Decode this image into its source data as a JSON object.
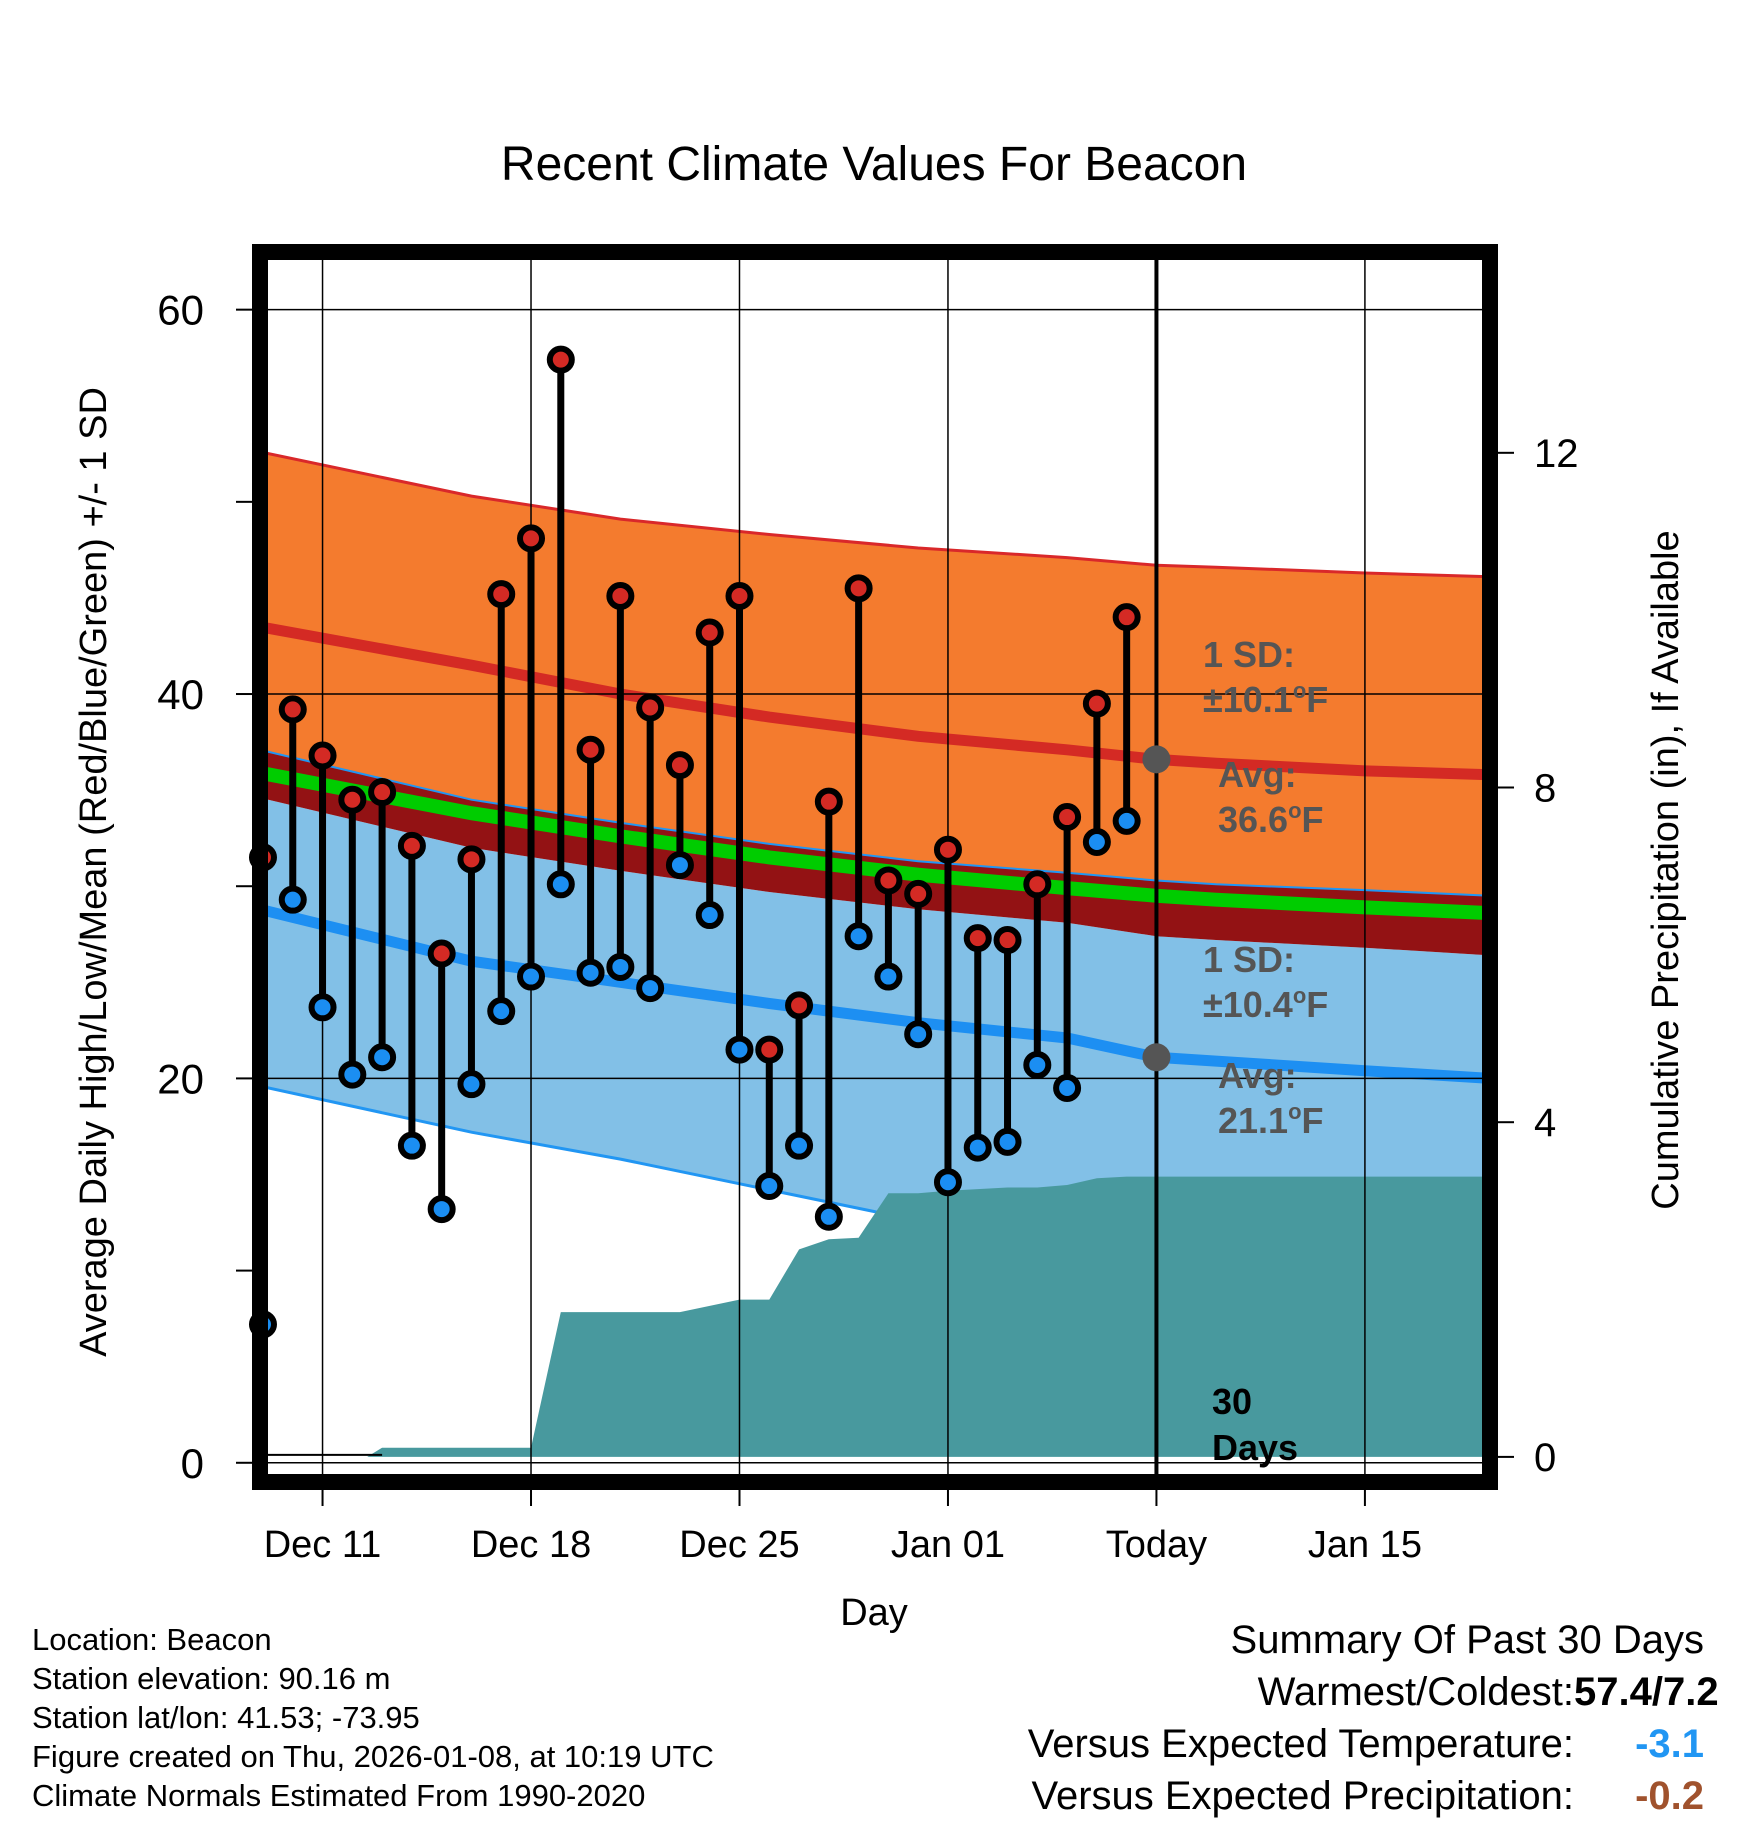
{
  "chart_data": {
    "type": "line",
    "title": "Recent Climate Values For Beacon",
    "xlabel": "Day",
    "ylabel": "Average Daily High/Low/Mean (Red/Blue/Green) +/- 1 SD",
    "y2label": "Cumulative Precipitation (in), If Available",
    "ylim": [
      -1,
      63
    ],
    "y2lim": [
      -0.3,
      14.4
    ],
    "yticks": [
      0,
      20,
      40,
      60
    ],
    "y2ticks": [
      0,
      4,
      8,
      12
    ],
    "xlim": [
      -2.1,
      39.2
    ],
    "x_tick_days": [
      0,
      7,
      14,
      21,
      28,
      35
    ],
    "x_tick_labels": [
      "Dec 11",
      "Dec 18",
      "Dec 25",
      "Jan 01",
      "Today",
      "Jan 15"
    ],
    "today_day": 28,
    "today_label": "30 Days",
    "normals_days": [
      -2.1,
      5,
      10,
      15,
      20,
      25,
      28,
      30,
      35,
      39.2
    ],
    "normal_high": [
      43.5,
      41.5,
      40.0,
      38.8,
      37.8,
      37.1,
      36.6,
      36.4,
      36.0,
      35.8
    ],
    "normal_high_upper": [
      52.6,
      50.3,
      49.1,
      48.3,
      47.6,
      47.1,
      46.7,
      46.6,
      46.3,
      46.1
    ],
    "normal_high_lower": [
      37.1,
      34.5,
      33.3,
      32.2,
      31.3,
      30.7,
      30.3,
      30.1,
      29.8,
      29.5
    ],
    "normal_mean": [
      35.9,
      33.8,
      32.6,
      31.5,
      30.6,
      29.9,
      29.5,
      29.3,
      28.9,
      28.6
    ],
    "normal_low": [
      28.8,
      26.1,
      25.0,
      23.9,
      22.9,
      22.1,
      21.1,
      20.9,
      20.4,
      20.0
    ],
    "normal_low_upper": [
      34.6,
      32.0,
      30.8,
      29.7,
      28.8,
      28.1,
      27.4,
      27.2,
      26.8,
      26.4
    ],
    "normal_low_lower": [
      19.6,
      17.2,
      15.8,
      14.2,
      12.6,
      11.2,
      10.6,
      10.2,
      9.4,
      9.0
    ],
    "precip_days": [
      -2.1,
      0.5,
      1.5,
      2.0,
      6.0,
      7.0,
      8.0,
      11.0,
      12.0,
      14.0,
      15.0,
      16.0,
      17.0,
      18.0,
      19.0,
      20.0,
      21.0,
      22.0,
      23.0,
      24.0,
      25.0,
      26.0,
      27.0,
      28.0,
      39.2
    ],
    "precip_values": [
      0,
      0,
      0,
      0.11,
      0.11,
      0.11,
      1.73,
      1.73,
      1.73,
      1.88,
      1.88,
      2.48,
      2.6,
      2.62,
      3.15,
      3.15,
      3.18,
      3.2,
      3.22,
      3.22,
      3.25,
      3.33,
      3.35,
      3.35,
      3.35
    ],
    "daily_days": [
      -2,
      -1,
      0,
      1,
      2,
      3,
      4,
      5,
      6,
      7,
      8,
      9,
      10,
      11,
      12,
      13,
      14,
      15,
      16,
      17,
      18,
      19,
      20,
      21,
      22,
      23,
      24,
      25,
      26,
      27
    ],
    "daily_high": [
      31.5,
      39.2,
      36.8,
      34.5,
      34.9,
      32.1,
      26.5,
      31.4,
      45.2,
      48.1,
      57.4,
      37.1,
      45.1,
      39.3,
      36.3,
      43.2,
      45.1,
      21.5,
      23.8,
      34.4,
      45.5,
      30.3,
      29.6,
      31.9,
      27.3,
      27.2,
      30.1,
      33.6,
      39.5,
      44.0
    ],
    "daily_low": [
      7.2,
      29.3,
      23.7,
      20.2,
      21.1,
      16.5,
      13.2,
      19.7,
      23.5,
      25.3,
      30.1,
      25.5,
      25.8,
      24.7,
      31.1,
      28.5,
      21.5,
      14.4,
      16.5,
      12.8,
      27.4,
      25.3,
      22.3,
      14.6,
      16.4,
      16.7,
      20.7,
      19.5,
      32.3,
      33.4
    ],
    "annotations": {
      "high_sd": "1 SD: ±10.1°F",
      "high_avg": "Avg: 36.6°F",
      "low_sd": "1 SD: ±10.4°F",
      "low_avg": "Avg: 21.1°F"
    }
  },
  "annotation_text": {
    "high_sd_line1": "1 SD:",
    "high_sd_line2": "±10.1",
    "high_avg_line1": "Avg:",
    "high_avg_line2": "36.6",
    "low_sd_line1": "1 SD:",
    "low_sd_line2": "±10.4",
    "low_avg_line1": "Avg:",
    "low_avg_line2": "21.1",
    "deg": "o",
    "unit": "F",
    "days_line1": "30",
    "days_line2": "Days"
  },
  "colors": {
    "high_sd_band": "#f47b2e",
    "high_line": "#d42a24",
    "overlap_band": "#931214",
    "mean_line": "#00cc00",
    "low_sd_band": "#82c0e7",
    "low_line": "#1d8ff2",
    "band_edge_high": "#d9282a",
    "band_edge_low": "#2196f3",
    "precip": "#48999e",
    "high_marker": "#d42a24",
    "low_marker": "#1b8ef2",
    "annotation": "#555555",
    "temp_anomaly": "#2196f3",
    "precip_anomaly": "#a0522d"
  },
  "footer": {
    "location": "Location: Beacon",
    "elevation": "Station elevation: 90.16 m",
    "latlon": "Station lat/lon: 41.53; -73.95",
    "created": "Figure created on Thu, 2026-01-08, at 10:19 UTC",
    "normals": "Climate Normals Estimated From 1990-2020"
  },
  "summary": {
    "heading": "Summary Of Past 30 Days",
    "warm_cold_label": "Warmest/Coldest:",
    "warm_cold_value": "57.4/7.2",
    "temp_label": "Versus Expected Temperature:",
    "temp_value": "-3.1",
    "precip_label": "Versus Expected Precipitation:",
    "precip_value": "-0.2"
  }
}
